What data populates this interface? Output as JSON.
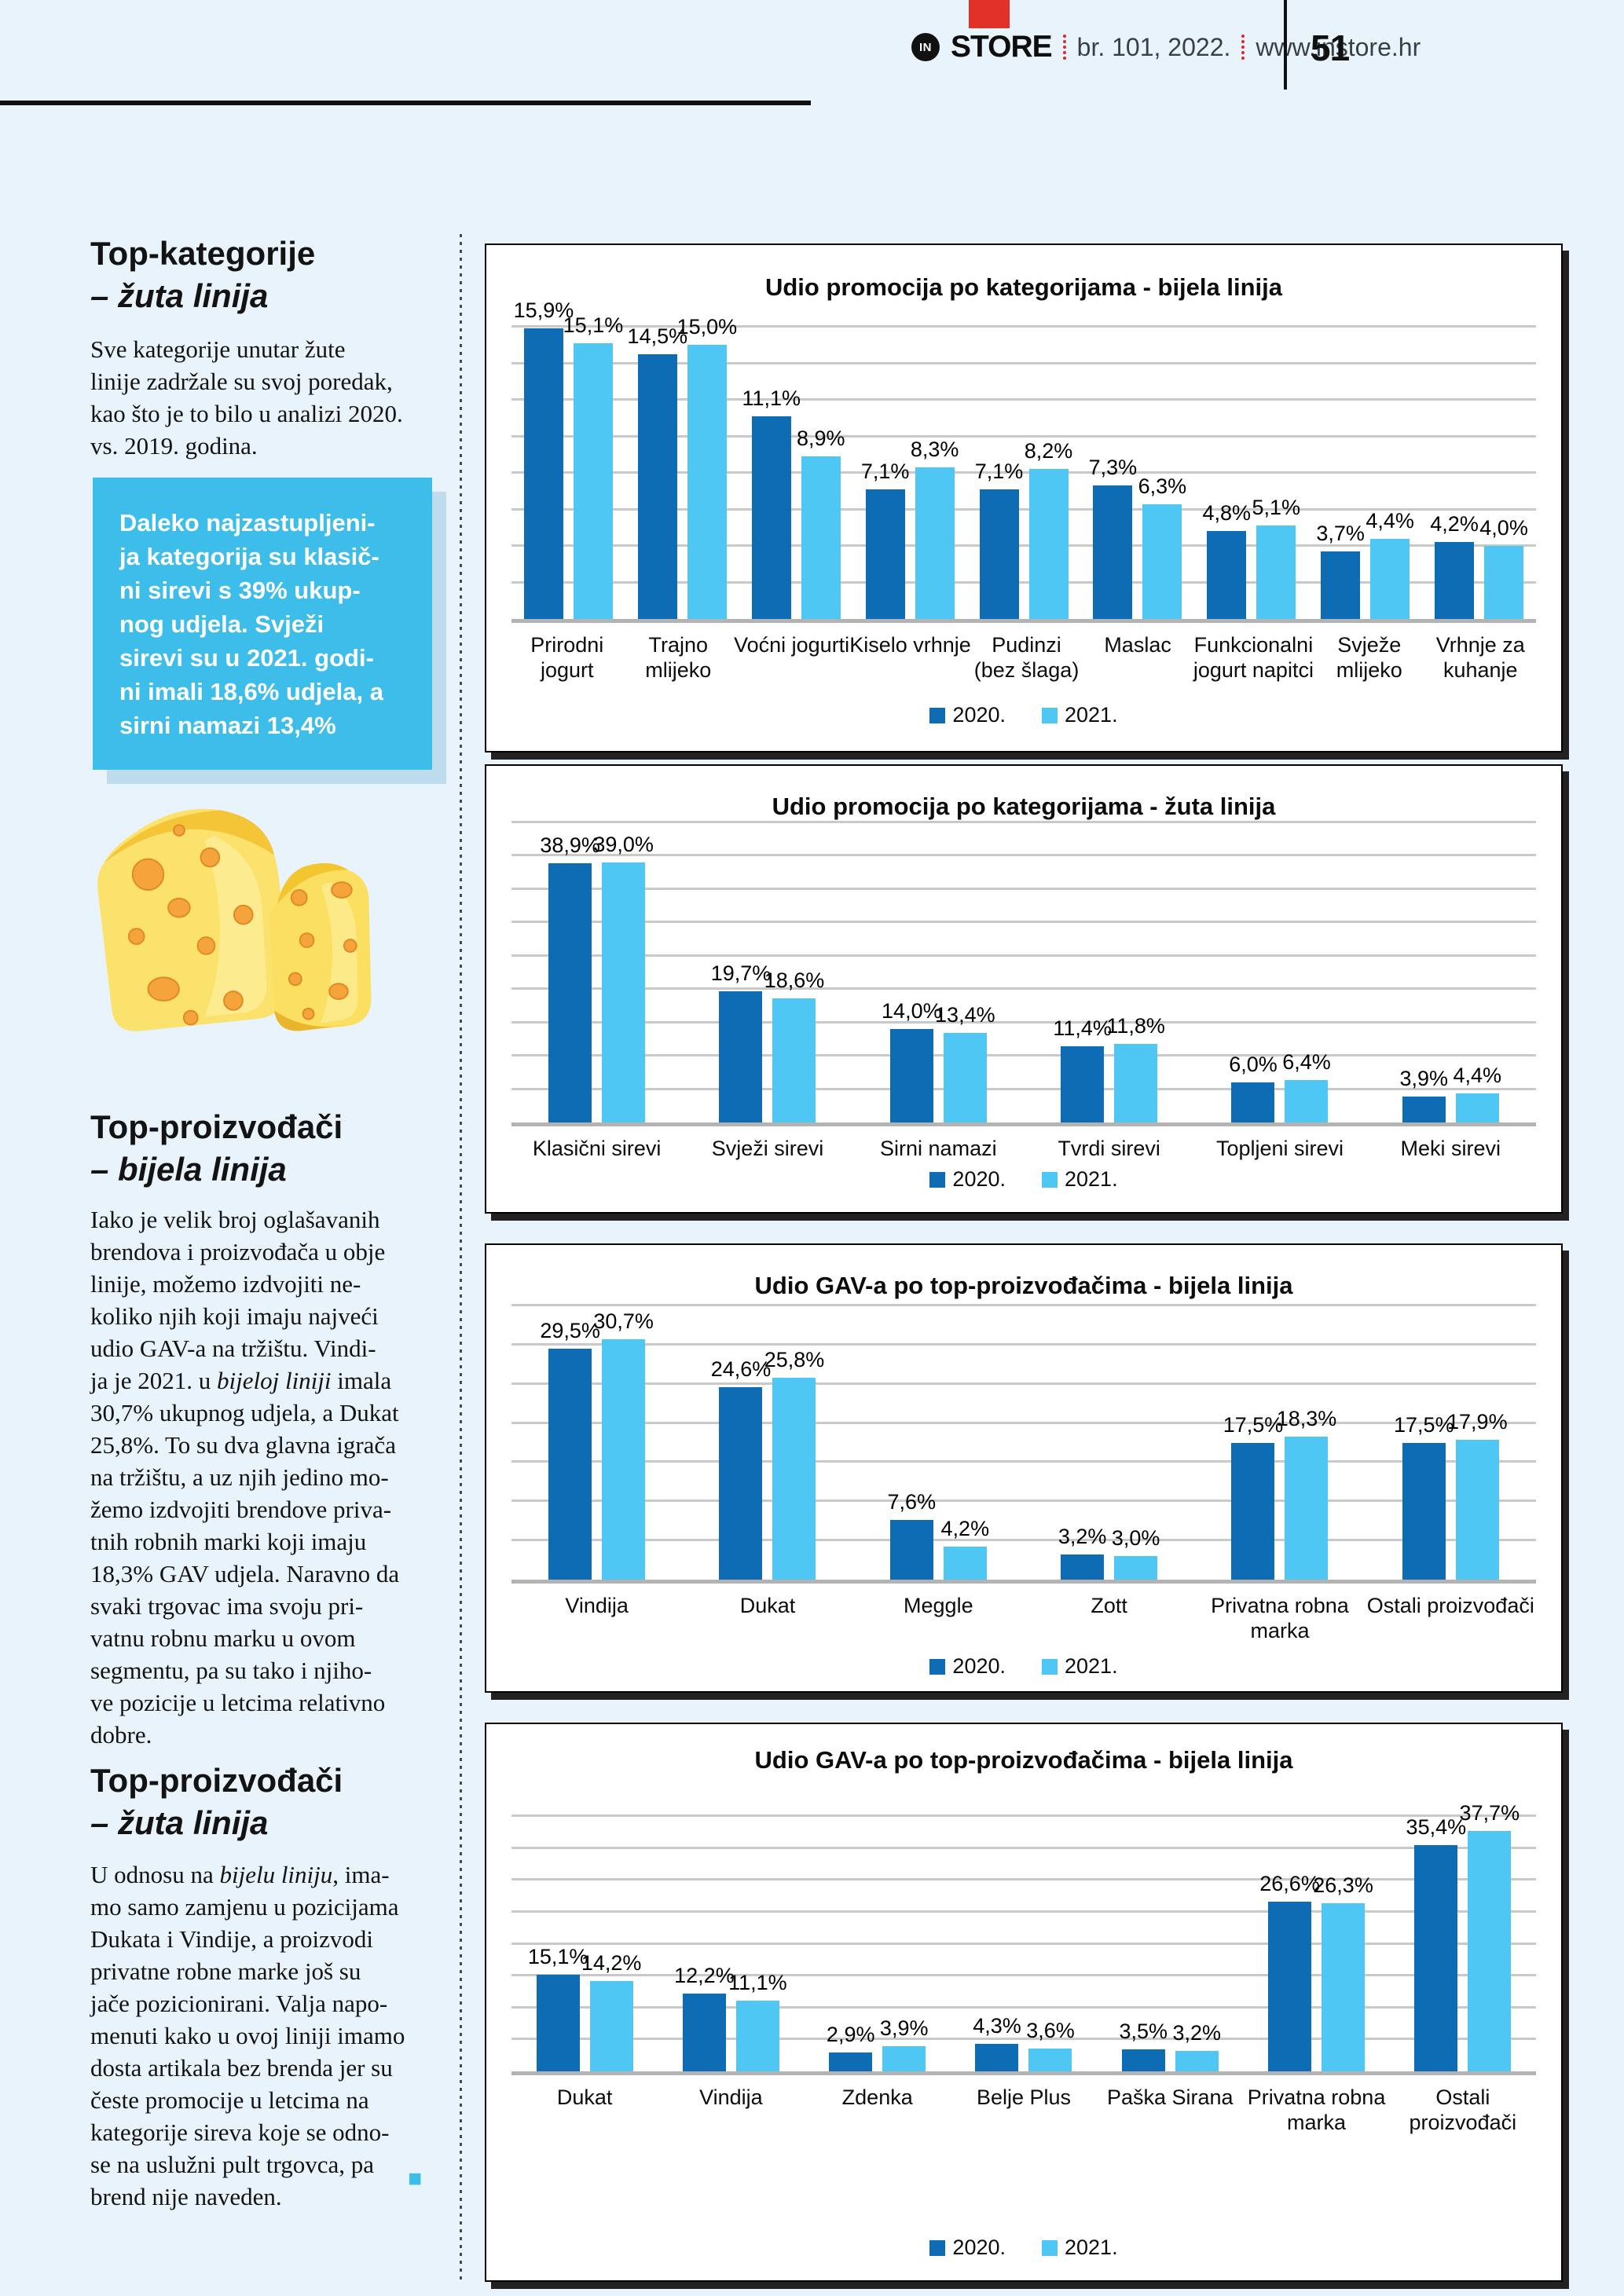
{
  "page": {
    "header": {
      "logo_icon": "IN",
      "logo_text": "STORE",
      "issue": "br. 101, 2022.",
      "site": "www.instore.hr",
      "page_number": "51"
    },
    "sidebar": {
      "section1_title": "Top-kategorije",
      "section1_subtitle": "– žuta linija",
      "section1_body": "Sve kategorije unutar žute\nlinije zadržale su svoj poredak,\nkao što je to bilo u analizi 2020.\nvs. 2019. godina.",
      "callout_text": "Daleko najzastupljeni-\nja kategorija su klasič-\nni sirevi s 39% ukup-\nnog udjela. Svježi\nsirevi su u 2021. godi-\nni imali 18,6% udjela, a\nsirni namazi 13,4%",
      "section2_title": "Top-proizvođači",
      "section2_subtitle": "– bijela linija",
      "section2_body_html": "Iako je velik broj oglašavanih\nbrendova i proizvođača u obje\nlinije, možemo izdvojiti ne-\nkoliko njih koji imaju najveći\nudio GAV-a na tržištu. Vindi-\nja je 2021. u <i>bijeloj liniji</i> imala\n30,7% ukupnog udjela, a Dukat\n25,8%. To su dva glavna igrača\nna tržištu, a uz njih jedino mo-\nžemo izdvojiti brendove priva-\ntnih robnih marki koji imaju\n18,3% GAV udjela. Naravno da\nsvaki trgovac ima svoju pri-\nvatnu robnu marku u ovom\nsegmentu, pa su tako i njiho-\nve pozicije u letcima relativno\ndobre.",
      "section3_title": "Top-proizvođači",
      "section3_subtitle": "– žuta linija",
      "section3_body_html": "U odnosu na <i>bijelu liniju</i>, ima-\nmo samo zamjenu u pozicijama\nDukata i Vindije, a proizvodi\nprivatne robne marke još su\njače pozicionirani. Valja napo-\nmenuti kako u ovoj liniji imamo\ndosta artikala bez brenda jer su\nčeste promocije u letcima na\nkategorije sireva koje se odno-\nse na uslužni pult trgovca, pa\nbrend nije naveden.",
      "end_marker": "■"
    },
    "colors": {
      "series_2020": "#0e6cb4",
      "series_2021": "#4fc7f4",
      "callout_bg": "#3dbde9",
      "accent_red": "#e23128",
      "page_bg": "#e9f3fb"
    }
  },
  "chart_data": [
    {
      "type": "bar",
      "title": "Udio promocija po kategorijama - bijela linija",
      "categories": [
        "Prirodni\njogurt",
        "Trajno\nmlijeko",
        "Voćni jogurti",
        "Kiselo vrhnje",
        "Pudinzi\n(bez šlaga)",
        "Maslac",
        "Funkcionalni\njogurt napitci",
        "Svježe\nmlijeko",
        "Vrhnje za\nkuhanje"
      ],
      "series": [
        {
          "name": "2020.",
          "color": "#0e6cb4",
          "values": [
            15.9,
            14.5,
            11.1,
            7.1,
            7.1,
            7.3,
            4.8,
            3.7,
            4.2
          ]
        },
        {
          "name": "2021.",
          "color": "#4fc7f4",
          "values": [
            15.1,
            15.0,
            8.9,
            8.3,
            8.2,
            6.3,
            5.1,
            4.4,
            4.0
          ]
        }
      ],
      "ylim": [
        0,
        16
      ],
      "grid_step": 2,
      "grid": true,
      "legend_position": "bottom",
      "xlabel": "",
      "ylabel": ""
    },
    {
      "type": "bar",
      "title": "Udio promocija po kategorijama - žuta linija",
      "categories": [
        "Klasični sirevi",
        "Svježi sirevi",
        "Sirni namazi",
        "Tvrdi sirevi",
        "Topljeni sirevi",
        "Meki sirevi"
      ],
      "series": [
        {
          "name": "2020.",
          "color": "#0e6cb4",
          "values": [
            38.9,
            19.7,
            14.0,
            11.4,
            6.0,
            3.9
          ]
        },
        {
          "name": "2021.",
          "color": "#4fc7f4",
          "values": [
            39.0,
            18.6,
            13.4,
            11.8,
            6.4,
            4.4
          ]
        }
      ],
      "ylim": [
        0,
        45
      ],
      "grid_step": 5,
      "grid": true,
      "legend_position": "bottom",
      "xlabel": "",
      "ylabel": ""
    },
    {
      "type": "bar",
      "title": "Udio GAV-a po top-proizvođačima - bijela linija",
      "categories": [
        "Vindija",
        "Dukat",
        "Meggle",
        "Zott",
        "Privatna robna\nmarka",
        "Ostali proizvođači"
      ],
      "series": [
        {
          "name": "2020.",
          "color": "#0e6cb4",
          "values": [
            29.5,
            24.6,
            7.6,
            3.2,
            17.5,
            17.5
          ]
        },
        {
          "name": "2021.",
          "color": "#4fc7f4",
          "values": [
            30.7,
            25.8,
            4.2,
            3.0,
            18.3,
            17.9
          ]
        }
      ],
      "ylim": [
        0,
        35
      ],
      "grid_step": 5,
      "grid": true,
      "legend_position": "bottom",
      "xlabel": "",
      "ylabel": ""
    },
    {
      "type": "bar",
      "title": "Udio GAV-a po top-proizvođačima - bijela linija",
      "categories": [
        "Dukat",
        "Vindija",
        "Zdenka",
        "Belje Plus",
        "Paška Sirana",
        "Privatna robna\nmarka",
        "Ostali\nproizvođači"
      ],
      "series": [
        {
          "name": "2020.",
          "color": "#0e6cb4",
          "values": [
            15.1,
            12.2,
            2.9,
            4.3,
            3.5,
            26.6,
            35.4
          ]
        },
        {
          "name": "2021.",
          "color": "#4fc7f4",
          "values": [
            14.2,
            11.1,
            3.9,
            3.6,
            3.2,
            26.3,
            37.7
          ]
        }
      ],
      "ylim": [
        0,
        40
      ],
      "grid_step": 5,
      "grid": true,
      "legend_position": "bottom",
      "xlabel": "",
      "ylabel": ""
    }
  ]
}
